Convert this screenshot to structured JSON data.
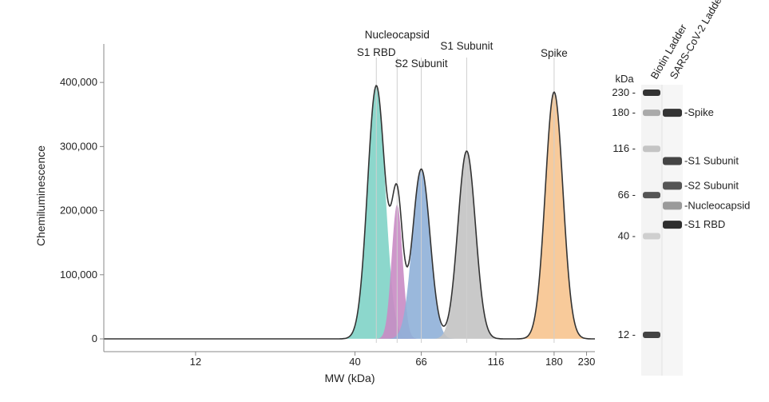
{
  "chart_data": [
    {
      "type": "area",
      "xlabel": "MW (kDa)",
      "ylabel": "Chemiluminescence",
      "x_scale": "log",
      "xlim": [
        6,
        245
      ],
      "ylim": [
        0,
        460000
      ],
      "x_ticks": [
        {
          "value": 12,
          "label": "12"
        },
        {
          "value": 40,
          "label": "40"
        },
        {
          "value": 66,
          "label": "66"
        },
        {
          "value": 116,
          "label": "116"
        },
        {
          "value": 180,
          "label": "180"
        },
        {
          "value": 230,
          "label": "230"
        }
      ],
      "y_ticks": [
        {
          "value": 0,
          "label": "0"
        },
        {
          "value": 100000,
          "label": "100,000"
        },
        {
          "value": 200000,
          "label": "200,000"
        },
        {
          "value": 300000,
          "label": "300,000"
        },
        {
          "value": 400000,
          "label": "400,000"
        }
      ],
      "grid": false,
      "peaks": [
        {
          "label": "S1 RBD",
          "mw": 47,
          "height": 395000,
          "color": "#7fd3c6"
        },
        {
          "label": "Nucleocapsid",
          "mw": 55,
          "height": 210000,
          "color": "#c98bc4"
        },
        {
          "label": "S2 Subunit",
          "mw": 66,
          "height": 265000,
          "color": "#8fb0d8"
        },
        {
          "label": "S1 Subunit",
          "mw": 93,
          "height": 293000,
          "color": "#c3c3c3"
        },
        {
          "label": "Spike",
          "mw": 180,
          "height": 385000,
          "color": "#f7c48f"
        }
      ]
    },
    {
      "type": "gel",
      "unit_label": "kDa",
      "lanes": [
        "Biotin Ladder",
        "SARS-CoV-2 Ladder"
      ],
      "ladder_markers": [
        {
          "label": "230",
          "mw": 230
        },
        {
          "label": "180",
          "mw": 180
        },
        {
          "label": "116",
          "mw": 116
        },
        {
          "label": "66",
          "mw": 66
        },
        {
          "label": "40",
          "mw": 40
        },
        {
          "label": "12",
          "mw": 12
        }
      ],
      "sample_bands": [
        {
          "label": "Spike",
          "mw": 180
        },
        {
          "label": "S1 Subunit",
          "mw": 100
        },
        {
          "label": "S2 Subunit",
          "mw": 74
        },
        {
          "label": "Nucleocapsid",
          "mw": 58
        },
        {
          "label": "S1 RBD",
          "mw": 46
        }
      ]
    }
  ]
}
